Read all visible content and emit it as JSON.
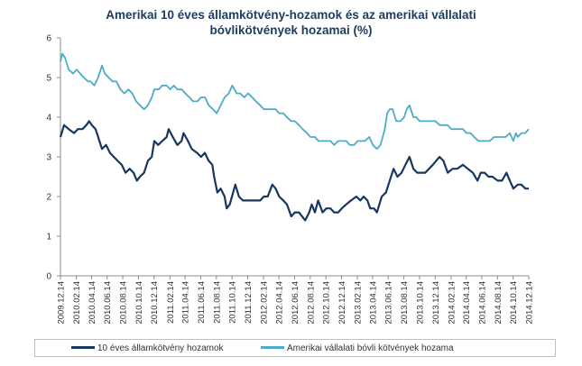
{
  "chart_data": {
    "type": "line",
    "title": [
      "Amerikai  10 éves államkötvény-hozamok  és az amerikai vállalati",
      "bóvlikötvények  hozamai (%)"
    ],
    "ylim": [
      0,
      6
    ],
    "yticks": [
      "0",
      "1",
      "2",
      "3",
      "4",
      "5",
      "6"
    ],
    "grid": false,
    "legend_position": "bottom",
    "x_tick_labels": [
      "2009.12.14",
      "2010.02.14",
      "2010.04.14",
      "2010.06.14",
      "2010.08.14",
      "2010.10.14",
      "2010.12.14",
      "2011.02.14",
      "2011.04.14",
      "2011.06.14",
      "2011.08.14",
      "2011.10.14",
      "2011.12.14",
      "2012.02.14",
      "2012.04.14",
      "2012.06.14",
      "2012.08.14",
      "2012.10.14",
      "2012.12.14",
      "2013.02.14",
      "2013.04.14",
      "2013.06.14",
      "2013.08.14",
      "2013.10.14",
      "2013.12.14",
      "2014.02.14",
      "2014.04.14",
      "2014.06.14",
      "2014.08.14",
      "2014.10.14",
      "2014.12.14"
    ],
    "x_range": [
      "2009.12.14",
      "2014.12.14"
    ],
    "series": [
      {
        "name": "10 éves államkötvény hozamok",
        "color": "#17375e",
        "points": [
          [
            "2009.12.14",
            3.5
          ],
          [
            "2009.12.28",
            3.8
          ],
          [
            "2010.01.15",
            3.7
          ],
          [
            "2010.02.05",
            3.6
          ],
          [
            "2010.02.20",
            3.7
          ],
          [
            "2010.03.10",
            3.7
          ],
          [
            "2010.03.25",
            3.8
          ],
          [
            "2010.04.05",
            3.9
          ],
          [
            "2010.04.15",
            3.8
          ],
          [
            "2010.04.30",
            3.7
          ],
          [
            "2010.05.10",
            3.5
          ],
          [
            "2010.05.25",
            3.2
          ],
          [
            "2010.06.10",
            3.3
          ],
          [
            "2010.06.25",
            3.1
          ],
          [
            "2010.07.10",
            3.0
          ],
          [
            "2010.07.25",
            2.9
          ],
          [
            "2010.08.10",
            2.8
          ],
          [
            "2010.08.25",
            2.6
          ],
          [
            "2010.09.10",
            2.7
          ],
          [
            "2010.09.25",
            2.6
          ],
          [
            "2010.10.08",
            2.4
          ],
          [
            "2010.10.20",
            2.5
          ],
          [
            "2010.11.05",
            2.6
          ],
          [
            "2010.11.20",
            2.9
          ],
          [
            "2010.12.05",
            3.0
          ],
          [
            "2010.12.15",
            3.4
          ],
          [
            "2010.12.30",
            3.3
          ],
          [
            "2011.01.15",
            3.4
          ],
          [
            "2011.02.01",
            3.5
          ],
          [
            "2011.02.09",
            3.7
          ],
          [
            "2011.02.25",
            3.5
          ],
          [
            "2011.03.15",
            3.3
          ],
          [
            "2011.03.31",
            3.4
          ],
          [
            "2011.04.08",
            3.6
          ],
          [
            "2011.04.25",
            3.4
          ],
          [
            "2011.05.10",
            3.2
          ],
          [
            "2011.05.31",
            3.1
          ],
          [
            "2011.06.15",
            3.0
          ],
          [
            "2011.06.30",
            3.1
          ],
          [
            "2011.07.15",
            2.9
          ],
          [
            "2011.07.29",
            2.8
          ],
          [
            "2011.08.05",
            2.5
          ],
          [
            "2011.08.18",
            2.1
          ],
          [
            "2011.08.31",
            2.2
          ],
          [
            "2011.09.15",
            2.0
          ],
          [
            "2011.09.23",
            1.7
          ],
          [
            "2011.10.05",
            1.8
          ],
          [
            "2011.10.27",
            2.3
          ],
          [
            "2011.11.10",
            2.0
          ],
          [
            "2011.11.25",
            1.9
          ],
          [
            "2011.12.15",
            1.9
          ],
          [
            "2011.12.30",
            1.9
          ],
          [
            "2012.01.15",
            1.9
          ],
          [
            "2012.02.01",
            1.9
          ],
          [
            "2012.02.15",
            2.0
          ],
          [
            "2012.03.01",
            2.0
          ],
          [
            "2012.03.19",
            2.3
          ],
          [
            "2012.04.01",
            2.2
          ],
          [
            "2012.04.15",
            2.0
          ],
          [
            "2012.05.01",
            1.9
          ],
          [
            "2012.05.15",
            1.8
          ],
          [
            "2012.06.01",
            1.5
          ],
          [
            "2012.06.15",
            1.6
          ],
          [
            "2012.07.01",
            1.6
          ],
          [
            "2012.07.25",
            1.4
          ],
          [
            "2012.08.10",
            1.6
          ],
          [
            "2012.08.20",
            1.8
          ],
          [
            "2012.09.01",
            1.6
          ],
          [
            "2012.09.14",
            1.9
          ],
          [
            "2012.10.01",
            1.6
          ],
          [
            "2012.10.15",
            1.7
          ],
          [
            "2012.11.01",
            1.7
          ],
          [
            "2012.11.15",
            1.6
          ],
          [
            "2012.12.01",
            1.6
          ],
          [
            "2012.12.15",
            1.7
          ],
          [
            "2013.01.01",
            1.8
          ],
          [
            "2013.01.20",
            1.9
          ],
          [
            "2013.02.10",
            2.0
          ],
          [
            "2013.02.25",
            1.9
          ],
          [
            "2013.03.10",
            2.0
          ],
          [
            "2013.03.25",
            1.9
          ],
          [
            "2013.04.05",
            1.7
          ],
          [
            "2013.04.20",
            1.7
          ],
          [
            "2013.05.01",
            1.6
          ],
          [
            "2013.05.20",
            2.0
          ],
          [
            "2013.06.05",
            2.1
          ],
          [
            "2013.06.20",
            2.4
          ],
          [
            "2013.07.05",
            2.7
          ],
          [
            "2013.07.20",
            2.5
          ],
          [
            "2013.08.05",
            2.6
          ],
          [
            "2013.08.20",
            2.8
          ],
          [
            "2013.09.05",
            3.0
          ],
          [
            "2013.09.20",
            2.7
          ],
          [
            "2013.10.05",
            2.6
          ],
          [
            "2013.10.20",
            2.6
          ],
          [
            "2013.11.05",
            2.6
          ],
          [
            "2013.11.20",
            2.7
          ],
          [
            "2013.12.05",
            2.8
          ],
          [
            "2013.12.31",
            3.0
          ],
          [
            "2014.01.15",
            2.9
          ],
          [
            "2014.02.01",
            2.6
          ],
          [
            "2014.02.20",
            2.7
          ],
          [
            "2014.03.10",
            2.7
          ],
          [
            "2014.04.01",
            2.8
          ],
          [
            "2014.04.20",
            2.7
          ],
          [
            "2014.05.10",
            2.6
          ],
          [
            "2014.05.28",
            2.4
          ],
          [
            "2014.06.10",
            2.6
          ],
          [
            "2014.06.25",
            2.6
          ],
          [
            "2014.07.10",
            2.5
          ],
          [
            "2014.07.25",
            2.5
          ],
          [
            "2014.08.15",
            2.4
          ],
          [
            "2014.09.01",
            2.4
          ],
          [
            "2014.09.18",
            2.6
          ],
          [
            "2014.10.01",
            2.4
          ],
          [
            "2014.10.15",
            2.2
          ],
          [
            "2014.11.01",
            2.3
          ],
          [
            "2014.11.15",
            2.3
          ],
          [
            "2014.12.01",
            2.2
          ],
          [
            "2014.12.14",
            2.2
          ]
        ]
      },
      {
        "name": "Amerikai vállalati bóvli kötvények hozama",
        "color": "#4bacc6",
        "points": [
          [
            "2009.12.14",
            5.4
          ],
          [
            "2009.12.21",
            5.6
          ],
          [
            "2010.01.01",
            5.5
          ],
          [
            "2010.01.15",
            5.2
          ],
          [
            "2010.02.01",
            5.1
          ],
          [
            "2010.02.15",
            5.2
          ],
          [
            "2010.03.01",
            5.1
          ],
          [
            "2010.03.15",
            5.0
          ],
          [
            "2010.04.01",
            4.9
          ],
          [
            "2010.04.10",
            4.9
          ],
          [
            "2010.04.25",
            4.8
          ],
          [
            "2010.05.10",
            5.0
          ],
          [
            "2010.05.25",
            5.3
          ],
          [
            "2010.06.05",
            5.1
          ],
          [
            "2010.06.20",
            5.0
          ],
          [
            "2010.07.05",
            4.9
          ],
          [
            "2010.07.20",
            4.9
          ],
          [
            "2010.08.05",
            4.7
          ],
          [
            "2010.08.20",
            4.6
          ],
          [
            "2010.09.05",
            4.7
          ],
          [
            "2010.09.20",
            4.6
          ],
          [
            "2010.10.05",
            4.4
          ],
          [
            "2010.10.20",
            4.3
          ],
          [
            "2010.11.05",
            4.2
          ],
          [
            "2010.11.20",
            4.3
          ],
          [
            "2010.12.05",
            4.5
          ],
          [
            "2010.12.15",
            4.7
          ],
          [
            "2011.01.01",
            4.7
          ],
          [
            "2011.01.15",
            4.8
          ],
          [
            "2011.02.01",
            4.8
          ],
          [
            "2011.02.15",
            4.7
          ],
          [
            "2011.03.01",
            4.8
          ],
          [
            "2011.03.15",
            4.7
          ],
          [
            "2011.04.01",
            4.7
          ],
          [
            "2011.04.15",
            4.6
          ],
          [
            "2011.05.01",
            4.5
          ],
          [
            "2011.05.15",
            4.4
          ],
          [
            "2011.06.01",
            4.4
          ],
          [
            "2011.06.15",
            4.5
          ],
          [
            "2011.07.01",
            4.5
          ],
          [
            "2011.07.15",
            4.3
          ],
          [
            "2011.08.01",
            4.2
          ],
          [
            "2011.08.15",
            4.1
          ],
          [
            "2011.08.31",
            4.3
          ],
          [
            "2011.09.15",
            4.5
          ],
          [
            "2011.10.01",
            4.6
          ],
          [
            "2011.10.15",
            4.8
          ],
          [
            "2011.11.01",
            4.6
          ],
          [
            "2011.11.15",
            4.6
          ],
          [
            "2011.12.01",
            4.5
          ],
          [
            "2011.12.15",
            4.6
          ],
          [
            "2012.01.01",
            4.5
          ],
          [
            "2012.01.15",
            4.4
          ],
          [
            "2012.02.01",
            4.3
          ],
          [
            "2012.02.15",
            4.2
          ],
          [
            "2012.03.01",
            4.2
          ],
          [
            "2012.03.15",
            4.2
          ],
          [
            "2012.04.01",
            4.2
          ],
          [
            "2012.04.15",
            4.1
          ],
          [
            "2012.05.01",
            4.1
          ],
          [
            "2012.05.15",
            4.0
          ],
          [
            "2012.06.01",
            3.9
          ],
          [
            "2012.06.15",
            3.9
          ],
          [
            "2012.07.01",
            3.8
          ],
          [
            "2012.07.15",
            3.7
          ],
          [
            "2012.08.01",
            3.6
          ],
          [
            "2012.08.15",
            3.5
          ],
          [
            "2012.09.01",
            3.5
          ],
          [
            "2012.09.15",
            3.4
          ],
          [
            "2012.10.01",
            3.4
          ],
          [
            "2012.10.15",
            3.4
          ],
          [
            "2012.11.01",
            3.4
          ],
          [
            "2012.11.15",
            3.3
          ],
          [
            "2012.12.01",
            3.4
          ],
          [
            "2012.12.15",
            3.4
          ],
          [
            "2013.01.01",
            3.4
          ],
          [
            "2013.01.15",
            3.3
          ],
          [
            "2013.02.01",
            3.3
          ],
          [
            "2013.02.15",
            3.4
          ],
          [
            "2013.03.01",
            3.4
          ],
          [
            "2013.03.15",
            3.4
          ],
          [
            "2013.04.01",
            3.5
          ],
          [
            "2013.04.15",
            3.3
          ],
          [
            "2013.05.01",
            3.2
          ],
          [
            "2013.05.15",
            3.3
          ],
          [
            "2013.06.01",
            3.7
          ],
          [
            "2013.06.10",
            4.1
          ],
          [
            "2013.06.20",
            4.2
          ],
          [
            "2013.07.01",
            4.2
          ],
          [
            "2013.07.15",
            3.9
          ],
          [
            "2013.08.01",
            3.9
          ],
          [
            "2013.08.15",
            4.0
          ],
          [
            "2013.08.25",
            4.2
          ],
          [
            "2013.09.05",
            4.3
          ],
          [
            "2013.09.20",
            4.0
          ],
          [
            "2013.10.01",
            4.0
          ],
          [
            "2013.10.15",
            3.9
          ],
          [
            "2013.11.01",
            3.9
          ],
          [
            "2013.11.15",
            3.9
          ],
          [
            "2013.12.01",
            3.9
          ],
          [
            "2013.12.15",
            3.9
          ],
          [
            "2014.01.01",
            3.8
          ],
          [
            "2014.01.15",
            3.8
          ],
          [
            "2014.02.01",
            3.8
          ],
          [
            "2014.02.15",
            3.7
          ],
          [
            "2014.03.01",
            3.7
          ],
          [
            "2014.03.15",
            3.7
          ],
          [
            "2014.04.01",
            3.7
          ],
          [
            "2014.04.15",
            3.6
          ],
          [
            "2014.05.01",
            3.6
          ],
          [
            "2014.05.15",
            3.5
          ],
          [
            "2014.06.01",
            3.4
          ],
          [
            "2014.06.15",
            3.4
          ],
          [
            "2014.07.01",
            3.4
          ],
          [
            "2014.07.15",
            3.4
          ],
          [
            "2014.08.01",
            3.5
          ],
          [
            "2014.08.15",
            3.5
          ],
          [
            "2014.09.01",
            3.5
          ],
          [
            "2014.09.15",
            3.5
          ],
          [
            "2014.10.01",
            3.6
          ],
          [
            "2014.10.15",
            3.4
          ],
          [
            "2014.10.25",
            3.6
          ],
          [
            "2014.11.01",
            3.5
          ],
          [
            "2014.11.15",
            3.6
          ],
          [
            "2014.12.01",
            3.6
          ],
          [
            "2014.12.14",
            3.7
          ]
        ]
      }
    ]
  }
}
